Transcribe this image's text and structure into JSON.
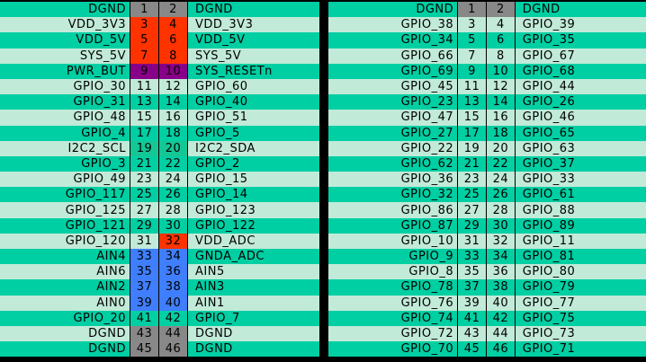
{
  "colors": {
    "dark_row": "#00cfa3",
    "light_row": "#c2ead9",
    "gray": "#888888",
    "red": "#ff3300",
    "purple": "#880088",
    "blue": "#3f7fff"
  },
  "left_header": {
    "rows": [
      {
        "left": "DGND",
        "n1": "1",
        "n2": "2",
        "right": "DGND",
        "h1": "gray",
        "h2": "gray"
      },
      {
        "left": "VDD_3V3",
        "n1": "3",
        "n2": "4",
        "right": "VDD_3V3",
        "h1": "red",
        "h2": "red"
      },
      {
        "left": "VDD_5V",
        "n1": "5",
        "n2": "6",
        "right": "VDD_5V",
        "h1": "red",
        "h2": "red"
      },
      {
        "left": "SYS_5V",
        "n1": "7",
        "n2": "8",
        "right": "SYS_5V",
        "h1": "red",
        "h2": "red"
      },
      {
        "left": "PWR_BUT",
        "n1": "9",
        "n2": "10",
        "right": "SYS_RESETn",
        "h1": "purple",
        "h2": "purple"
      },
      {
        "left": "GPIO_30",
        "n1": "11",
        "n2": "12",
        "right": "GPIO_60",
        "h1": "",
        "h2": ""
      },
      {
        "left": "GPIO_31",
        "n1": "13",
        "n2": "14",
        "right": "GPIO_40",
        "h1": "",
        "h2": ""
      },
      {
        "left": "GPIO_48",
        "n1": "15",
        "n2": "16",
        "right": "GPIO_51",
        "h1": "",
        "h2": ""
      },
      {
        "left": "GPIO_4",
        "n1": "17",
        "n2": "18",
        "right": "GPIO_5",
        "h1": "",
        "h2": ""
      },
      {
        "left": "I2C2_SCL",
        "n1": "19",
        "n2": "20",
        "right": "I2C2_SDA",
        "h1": "green",
        "h2": "green"
      },
      {
        "left": "GPIO_3",
        "n1": "21",
        "n2": "22",
        "right": "GPIO_2",
        "h1": "",
        "h2": ""
      },
      {
        "left": "GPIO_49",
        "n1": "23",
        "n2": "24",
        "right": "GPIO_15",
        "h1": "",
        "h2": ""
      },
      {
        "left": "GPIO_117",
        "n1": "25",
        "n2": "26",
        "right": "GPIO_14",
        "h1": "",
        "h2": ""
      },
      {
        "left": "GPIO_125",
        "n1": "27",
        "n2": "28",
        "right": "GPIO_123",
        "h1": "",
        "h2": ""
      },
      {
        "left": "GPIO_121",
        "n1": "29",
        "n2": "30",
        "right": "GPIO_122",
        "h1": "",
        "h2": ""
      },
      {
        "left": "GPIO_120",
        "n1": "31",
        "n2": "32",
        "right": "VDD_ADC",
        "h1": "",
        "h2": "red"
      },
      {
        "left": "AIN4",
        "n1": "33",
        "n2": "34",
        "right": "GNDA_ADC",
        "h1": "blue",
        "h2": "blue"
      },
      {
        "left": "AIN6",
        "n1": "35",
        "n2": "36",
        "right": "AIN5",
        "h1": "blue",
        "h2": "blue"
      },
      {
        "left": "AIN2",
        "n1": "37",
        "n2": "38",
        "right": "AIN3",
        "h1": "blue",
        "h2": "blue"
      },
      {
        "left": "AIN0",
        "n1": "39",
        "n2": "40",
        "right": "AIN1",
        "h1": "blue",
        "h2": "blue"
      },
      {
        "left": "GPIO_20",
        "n1": "41",
        "n2": "42",
        "right": "GPIO_7",
        "h1": "",
        "h2": ""
      },
      {
        "left": "DGND",
        "n1": "43",
        "n2": "44",
        "right": "DGND",
        "h1": "gray",
        "h2": "gray"
      },
      {
        "left": "DGND",
        "n1": "45",
        "n2": "46",
        "right": "DGND",
        "h1": "gray",
        "h2": "gray"
      }
    ]
  },
  "right_header": {
    "rows": [
      {
        "left": "DGND",
        "n1": "1",
        "n2": "2",
        "right": "DGND",
        "h1": "gray",
        "h2": "gray"
      },
      {
        "left": "GPIO_38",
        "n1": "3",
        "n2": "4",
        "right": "GPIO_39",
        "h1": "",
        "h2": ""
      },
      {
        "left": "GPIO_34",
        "n1": "5",
        "n2": "6",
        "right": "GPIO_35",
        "h1": "",
        "h2": ""
      },
      {
        "left": "GPIO_66",
        "n1": "7",
        "n2": "8",
        "right": "GPIO_67",
        "h1": "",
        "h2": ""
      },
      {
        "left": "GPIO_69",
        "n1": "9",
        "n2": "10",
        "right": "GPIO_68",
        "h1": "",
        "h2": ""
      },
      {
        "left": "GPIO_45",
        "n1": "11",
        "n2": "12",
        "right": "GPIO_44",
        "h1": "",
        "h2": ""
      },
      {
        "left": "GPIO_23",
        "n1": "13",
        "n2": "14",
        "right": "GPIO_26",
        "h1": "",
        "h2": ""
      },
      {
        "left": "GPIO_47",
        "n1": "15",
        "n2": "16",
        "right": "GPIO_46",
        "h1": "",
        "h2": ""
      },
      {
        "left": "GPIO_27",
        "n1": "17",
        "n2": "18",
        "right": "GPIO_65",
        "h1": "",
        "h2": ""
      },
      {
        "left": "GPIO_22",
        "n1": "19",
        "n2": "20",
        "right": "GPIO_63",
        "h1": "",
        "h2": ""
      },
      {
        "left": "GPIO_62",
        "n1": "21",
        "n2": "22",
        "right": "GPIO_37",
        "h1": "",
        "h2": ""
      },
      {
        "left": "GPIO_36",
        "n1": "23",
        "n2": "24",
        "right": "GPIO_33",
        "h1": "",
        "h2": ""
      },
      {
        "left": "GPIO_32",
        "n1": "25",
        "n2": "26",
        "right": "GPIO_61",
        "h1": "",
        "h2": ""
      },
      {
        "left": "GPIO_86",
        "n1": "27",
        "n2": "28",
        "right": "GPIO_88",
        "h1": "",
        "h2": ""
      },
      {
        "left": "GPIO_87",
        "n1": "29",
        "n2": "30",
        "right": "GPIO_89",
        "h1": "",
        "h2": ""
      },
      {
        "left": "GPIO_10",
        "n1": "31",
        "n2": "32",
        "right": "GPIO_11",
        "h1": "",
        "h2": ""
      },
      {
        "left": "GPIO_9",
        "n1": "33",
        "n2": "34",
        "right": "GPIO_81",
        "h1": "",
        "h2": ""
      },
      {
        "left": "GPIO_8",
        "n1": "35",
        "n2": "36",
        "right": "GPIO_80",
        "h1": "",
        "h2": ""
      },
      {
        "left": "GPIO_78",
        "n1": "37",
        "n2": "38",
        "right": "GPIO_79",
        "h1": "",
        "h2": ""
      },
      {
        "left": "GPIO_76",
        "n1": "39",
        "n2": "40",
        "right": "GPIO_77",
        "h1": "",
        "h2": ""
      },
      {
        "left": "GPIO_74",
        "n1": "41",
        "n2": "42",
        "right": "GPIO_75",
        "h1": "",
        "h2": ""
      },
      {
        "left": "GPIO_72",
        "n1": "43",
        "n2": "44",
        "right": "GPIO_73",
        "h1": "",
        "h2": ""
      },
      {
        "left": "GPIO_70",
        "n1": "45",
        "n2": "46",
        "right": "GPIO_71",
        "h1": "",
        "h2": ""
      }
    ]
  }
}
